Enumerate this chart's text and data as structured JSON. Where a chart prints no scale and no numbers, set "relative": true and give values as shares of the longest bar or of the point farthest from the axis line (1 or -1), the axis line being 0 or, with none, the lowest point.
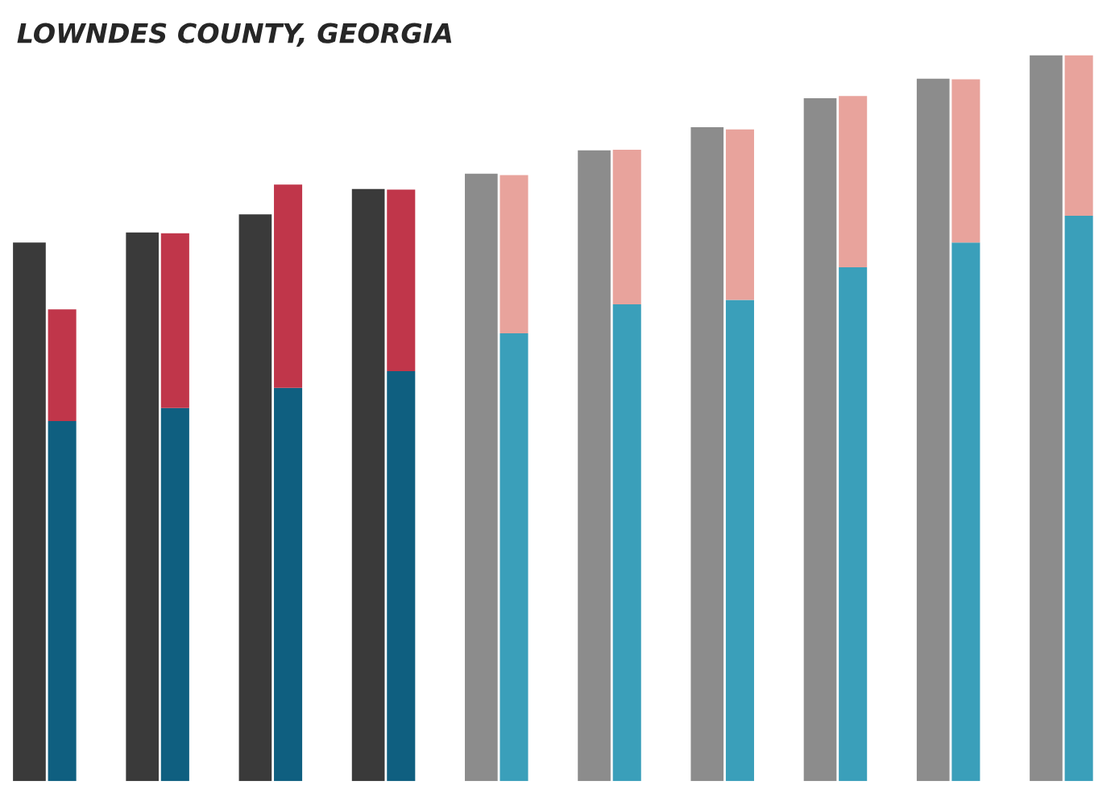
{
  "chart_data": [
    {
      "type": "bar",
      "title": "LOWNDES COUNTY, GEORGIA",
      "relative": true,
      "grid": false,
      "categories": [
        null,
        null,
        null,
        null,
        null,
        null,
        null,
        null,
        null,
        null
      ],
      "series": [
        {
          "colors": [
            "#3a3a3a",
            "#3a3a3a",
            "#3a3a3a",
            "#3a3a3a",
            "#8c8c8c",
            "#8c8c8c",
            "#8c8c8c",
            "#8c8c8c",
            "#8c8c8c",
            "#8c8c8c"
          ],
          "values": [
            0.742,
            0.756,
            0.781,
            0.816,
            0.837,
            0.869,
            0.901,
            0.941,
            0.968,
            1
          ]
        }
      ]
    },
    {
      "type": "bar",
      "relative": true,
      "grid": false,
      "stacked": true,
      "categories": [
        null,
        null,
        null,
        null,
        null,
        null,
        null,
        null,
        null,
        null
      ],
      "series": [
        {
          "colors": [
            "#0f5f80",
            "#0f5f80",
            "#0f5f80",
            "#0f5f80",
            "#3a9fba",
            "#3a9fba",
            "#3a9fba",
            "#3a9fba",
            "#3a9fba",
            "#3a9fba"
          ],
          "values": [
            0.496,
            0.514,
            0.542,
            0.565,
            0.617,
            0.657,
            0.663,
            0.708,
            0.742,
            0.779
          ]
        },
        {
          "colors": [
            "#c0364a",
            "#c0364a",
            "#c0364a",
            "#c0364a",
            "#e8a39c",
            "#e8a39c",
            "#e8a39c",
            "#e8a39c",
            "#e8a39c",
            "#e8a39c"
          ],
          "values": [
            0.154,
            0.241,
            0.28,
            0.25,
            0.218,
            0.213,
            0.235,
            0.236,
            0.225,
            0.221
          ]
        }
      ]
    }
  ]
}
